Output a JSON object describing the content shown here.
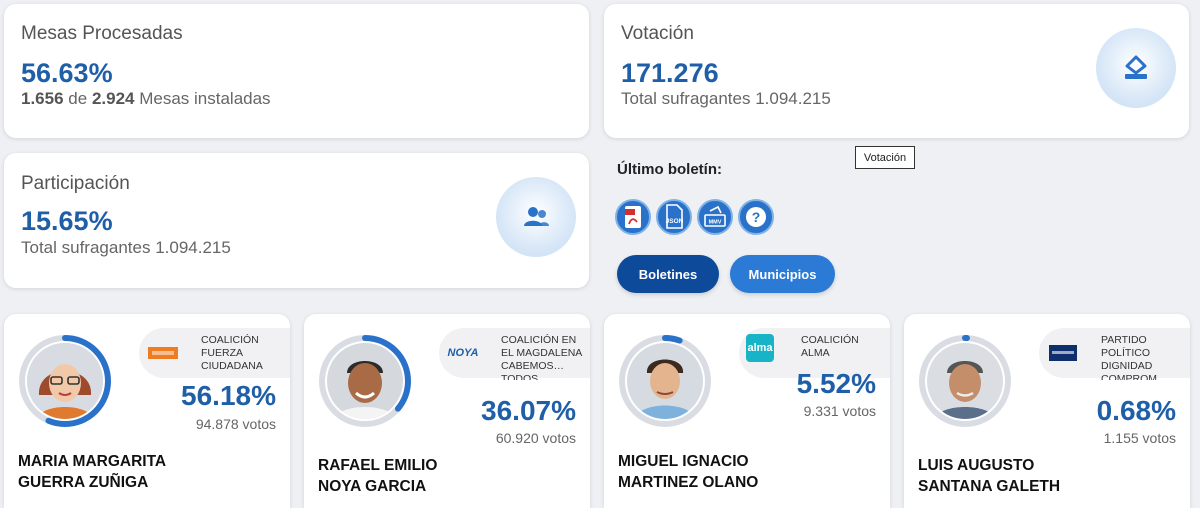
{
  "mesas": {
    "title": "Mesas Procesadas",
    "percent": "56.63%",
    "processed": "1.656",
    "of_word": "de",
    "installed": "2.924",
    "installed_suffix": "Mesas instaladas"
  },
  "votacion": {
    "title": "Votación",
    "value": "171.276",
    "subtitle": "Total sufragantes 1.094.215",
    "icon": "ballot-box-icon",
    "tooltip": "Votación"
  },
  "participacion": {
    "title": "Participación",
    "percent": "15.65%",
    "subtitle": "Total sufragantes 1.094.215",
    "icon": "users-icon"
  },
  "boletin": {
    "label": "Último boletín:",
    "files": [
      {
        "icon": "pdf-icon",
        "text": "PDF"
      },
      {
        "icon": "json-icon",
        "text": "JSON"
      },
      {
        "icon": "ballot-icon",
        "text": "MMV"
      },
      {
        "icon": "help-icon",
        "text": "?"
      }
    ],
    "buttons": {
      "boletines": "Boletines",
      "municipios": "Municipios"
    }
  },
  "colors": {
    "accent": "#1f5fa8",
    "button_dark": "#0d4a9a",
    "button_light": "#2a7ad6",
    "ring_track": "#d9dde3"
  },
  "candidates": [
    {
      "name_line1": "MARIA MARGARITA",
      "name_line2": "GUERRA ZUÑIGA",
      "party": "COALICIÓN FUERZA CIUDADANA",
      "party_logo": "fuerza",
      "percent": "56.18%",
      "percent_value": 56.18,
      "votes": "94.878 votos"
    },
    {
      "name_line1": "RAFAEL EMILIO",
      "name_line2": "NOYA GARCIA",
      "party": "COALICIÓN EN EL MAGDALENA CABEMOS… TODOS",
      "party_logo": "NOYA",
      "percent": "36.07%",
      "percent_value": 36.07,
      "votes": "60.920 votos"
    },
    {
      "name_line1": "MIGUEL IGNACIO",
      "name_line2": "MARTINEZ OLANO",
      "party": "COALICIÓN ALMA",
      "party_logo": "alma",
      "percent": "5.52%",
      "percent_value": 5.52,
      "votes": "9.331 votos"
    },
    {
      "name_line1": "LUIS AUGUSTO",
      "name_line2": "SANTANA GALETH",
      "party": "PARTIDO POLÍTICO DIGNIDAD COMPROM… SO",
      "party_logo": "dignidad",
      "percent": "0.68%",
      "percent_value": 0.68,
      "votes": "1.155 votos"
    }
  ]
}
